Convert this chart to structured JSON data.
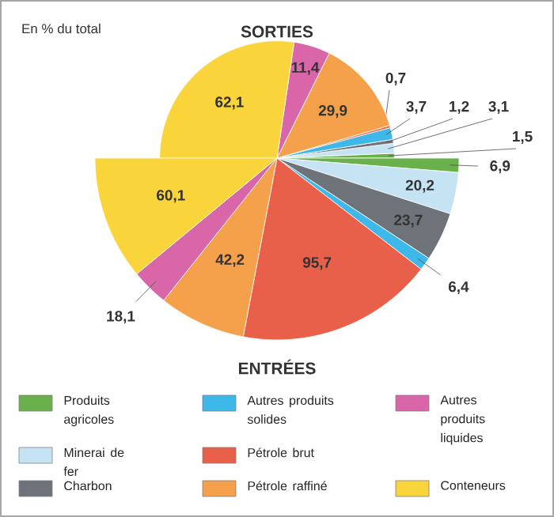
{
  "chart_data": [
    {
      "type": "pie",
      "title": "SORTIES",
      "annotations": [
        "En % du total"
      ],
      "values": [
        1.5,
        3.1,
        1.2,
        3.7,
        0.7,
        29.9,
        11.4,
        62.1
      ],
      "value_labels": [
        "1,5",
        "3,1",
        "1,2",
        "3,7",
        "0,7",
        "29,9",
        "11,4",
        "62,1"
      ],
      "colors": [
        "#6ab04c",
        "#c5e3f3",
        "#6e737a",
        "#3db8e8",
        "#e8604a",
        "#f5a04a",
        "#d866a8",
        "#f9d43a"
      ]
    },
    {
      "type": "pie",
      "title": "ENTRÉES",
      "legend": "bottom",
      "categories": [
        "Produits agricoles",
        "Minerai de fer",
        "Charbon",
        "Autres produits solides",
        "Pétrole brut",
        "Pétrole raffiné",
        "Autres produits liquides",
        "Conteneurs"
      ],
      "values": [
        6.9,
        20.2,
        23.7,
        6.4,
        95.7,
        42.2,
        18.1,
        60.1
      ],
      "value_labels": [
        "6,9",
        "20,2",
        "23,7",
        "6,4",
        "95,7",
        "42,2",
        "18,1",
        "60,1"
      ],
      "colors": [
        "#6ab04c",
        "#c5e3f3",
        "#6e737a",
        "#3db8e8",
        "#e8604a",
        "#f5a04a",
        "#d866a8",
        "#f9d43a"
      ]
    }
  ]
}
